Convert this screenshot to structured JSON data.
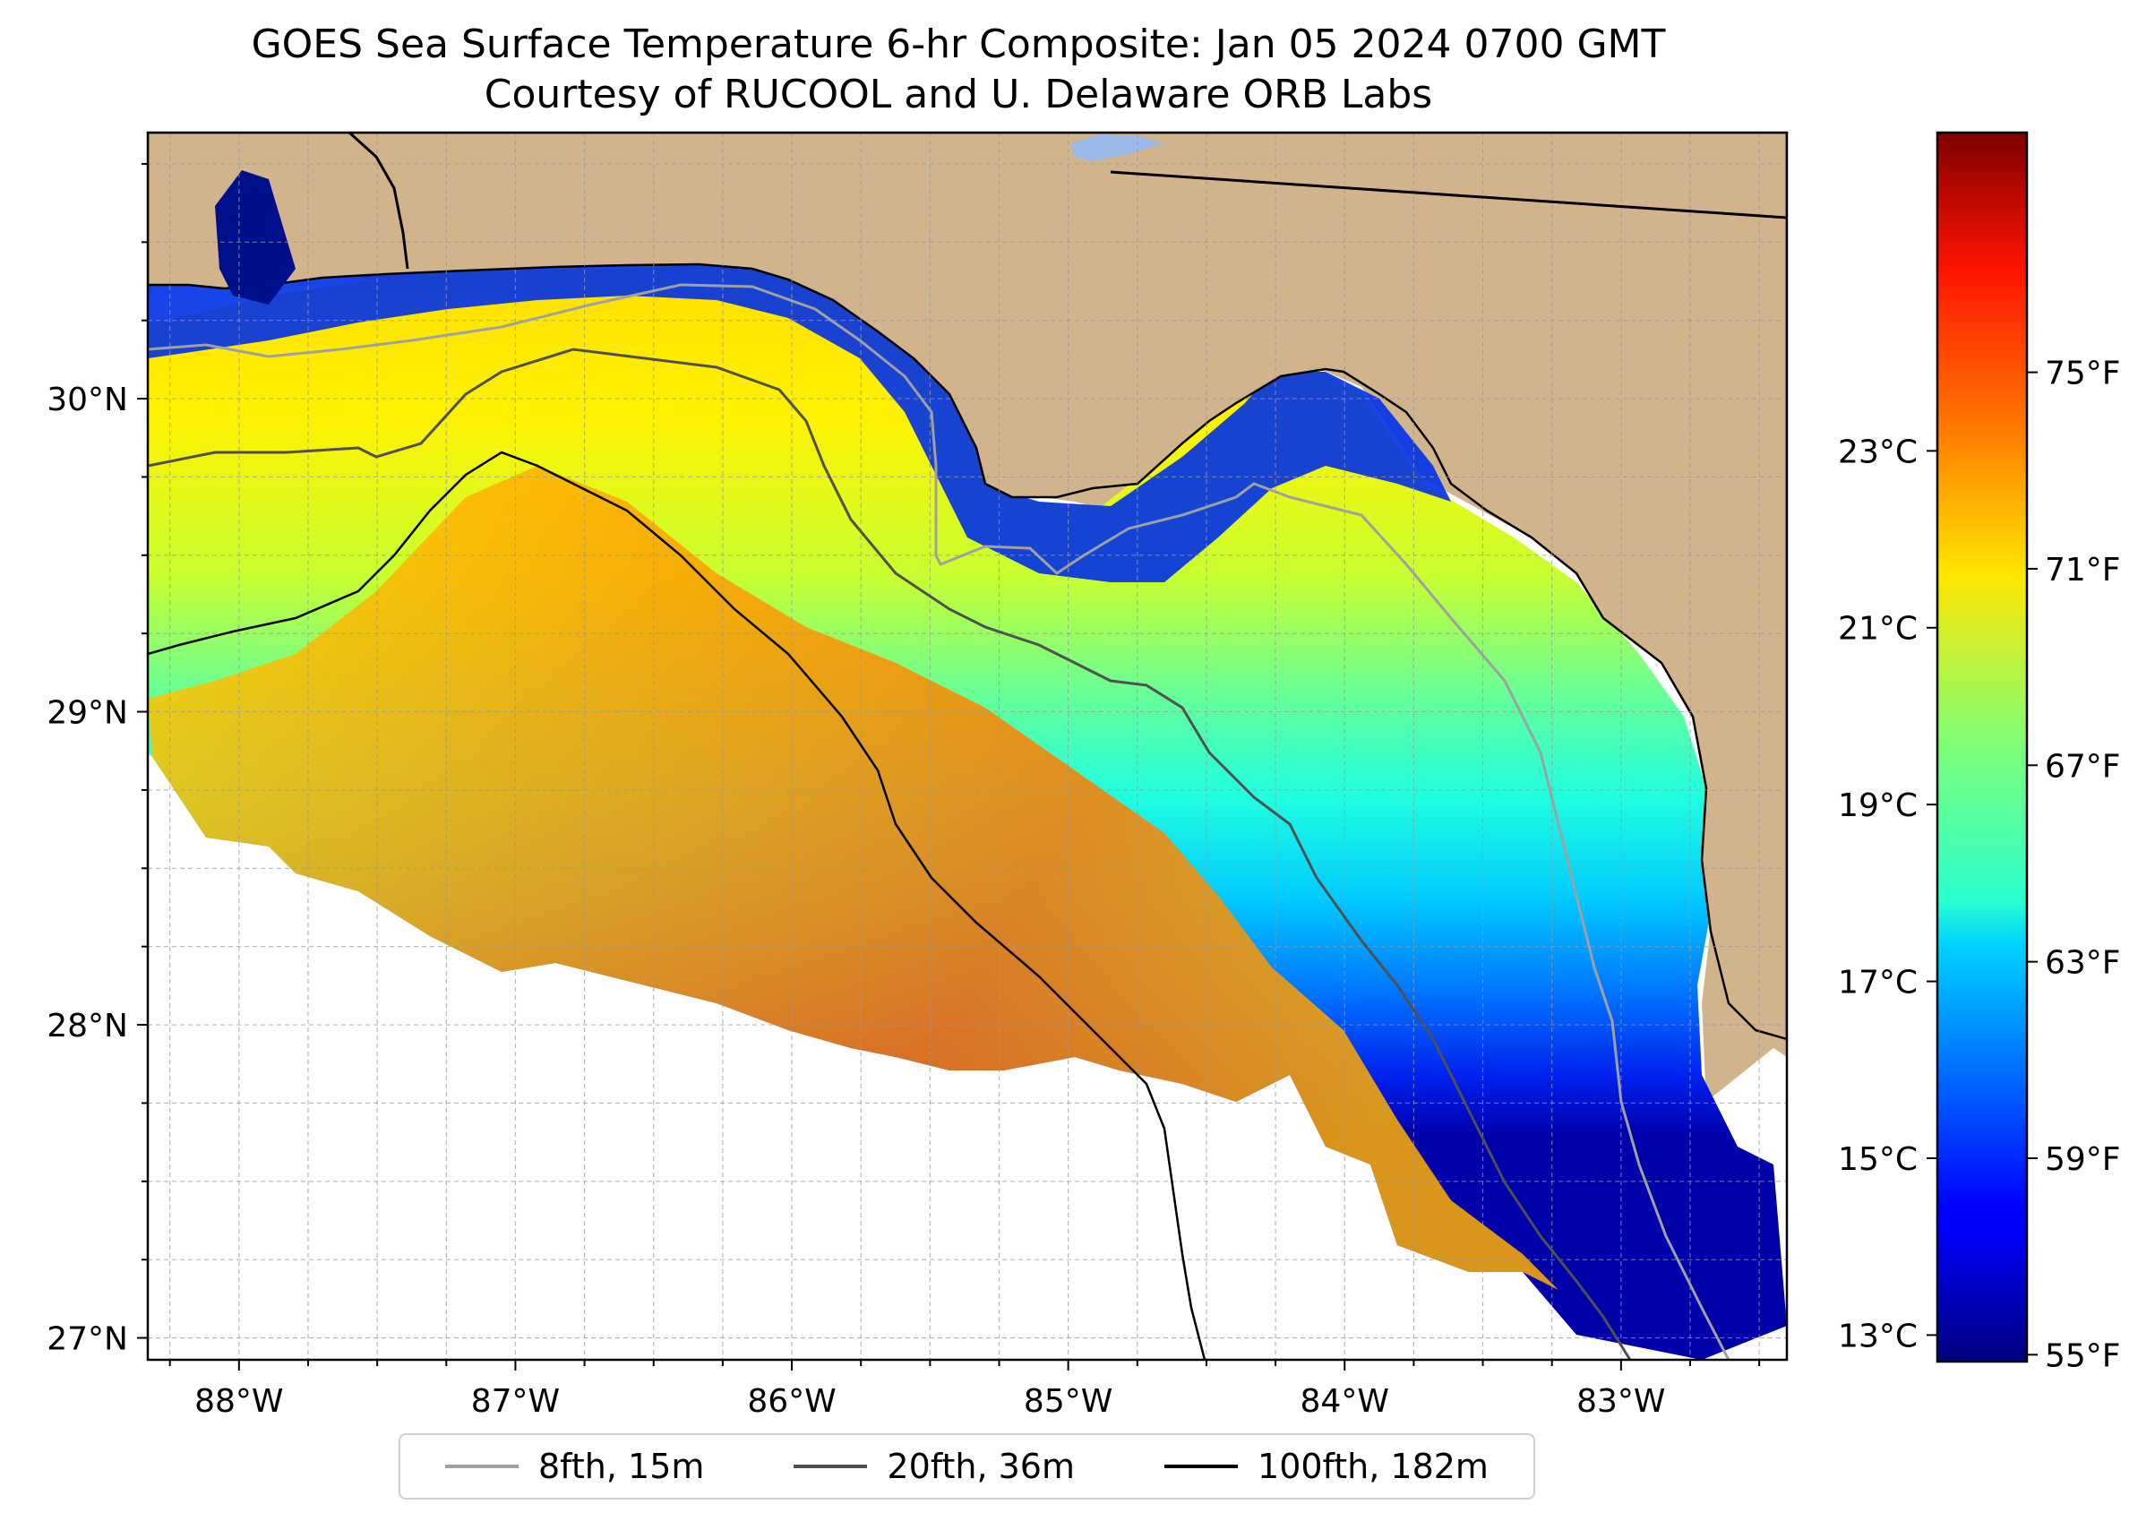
{
  "title": "GOES Sea Surface Temperature 6-hr Composite: Jan 05 2024 0700 GMT",
  "subtitle": "Courtesy of RUCOOL and U. Delaware ORB Labs",
  "map": {
    "extent": {
      "lon": [
        -88.33,
        -82.4
      ],
      "lat": [
        26.93,
        30.85
      ]
    },
    "lat_ticks": [
      {
        "value": 30,
        "label": "30°N"
      },
      {
        "value": 29,
        "label": "29°N"
      },
      {
        "value": 28,
        "label": "28°N"
      },
      {
        "value": 27,
        "label": "27°N"
      }
    ],
    "lon_ticks": [
      {
        "value": -88,
        "label": "88°W"
      },
      {
        "value": -87,
        "label": "87°W"
      },
      {
        "value": -86,
        "label": "86°W"
      },
      {
        "value": -85,
        "label": "85°W"
      },
      {
        "value": -84,
        "label": "84°W"
      },
      {
        "value": -83,
        "label": "83°W"
      }
    ],
    "grid": true,
    "land_color": "#d2b48c",
    "missing_color": "#ffffff"
  },
  "colorbar": {
    "colormap": "jet",
    "range_c": [
      12.7,
      26.6
    ],
    "celsius_ticks": [
      {
        "value": 23,
        "label": "23°C"
      },
      {
        "value": 21,
        "label": "21°C"
      },
      {
        "value": 19,
        "label": "19°C"
      },
      {
        "value": 17,
        "label": "17°C"
      },
      {
        "value": 15,
        "label": "15°C"
      },
      {
        "value": 13,
        "label": "13°C"
      }
    ],
    "fahrenheit_ticks": [
      {
        "value": 75,
        "label": "75°F"
      },
      {
        "value": 71,
        "label": "71°F"
      },
      {
        "value": 67,
        "label": "67°F"
      },
      {
        "value": 63,
        "label": "63°F"
      },
      {
        "value": 59,
        "label": "59°F"
      },
      {
        "value": 55,
        "label": "55°F"
      }
    ]
  },
  "legend": {
    "items": [
      {
        "label": "8fth, 15m",
        "color": "#a0a0a0"
      },
      {
        "label": "20fth, 36m",
        "color": "#505050"
      },
      {
        "label": "100fth, 182m",
        "color": "#000000"
      }
    ]
  }
}
